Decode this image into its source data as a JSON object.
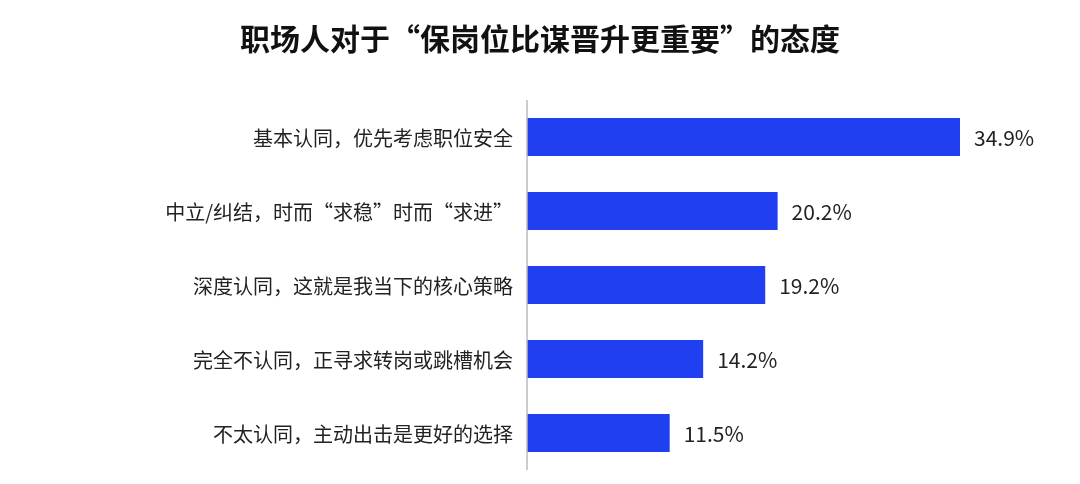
{
  "chart_data": {
    "type": "bar",
    "orientation": "horizontal",
    "title": "职场人对于“保岗位比谋晋升更重要”的态度",
    "categories": [
      "基本认同，优先考虑职位安全",
      "中立/纠结，时而“求稳”时而“求进”",
      "深度认同，这就是我当下的核心策略",
      "完全不认同，正寻求转岗或跳槽机会",
      "不太认同，主动出击是更好的选择"
    ],
    "values": [
      34.9,
      20.2,
      19.2,
      14.2,
      11.5
    ],
    "value_labels": [
      "34.9%",
      "20.2%",
      "19.2%",
      "14.2%",
      "11.5%"
    ],
    "color": "#1f3ff0"
  }
}
